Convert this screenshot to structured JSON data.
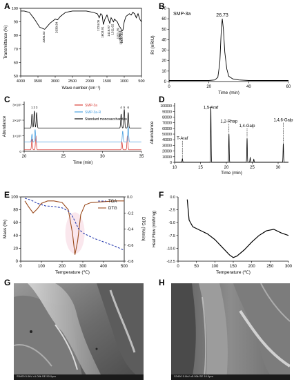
{
  "panels": {
    "A": {
      "letter": "A"
    },
    "B": {
      "letter": "B"
    },
    "C": {
      "letter": "C"
    },
    "D": {
      "letter": "D"
    },
    "E": {
      "letter": "E"
    },
    "F": {
      "letter": "F"
    },
    "G": {
      "letter": "G"
    },
    "H": {
      "letter": "H"
    }
  },
  "chart_data": [
    {
      "id": "A",
      "type": "line",
      "xlabel": "Wave number (cm⁻¹)",
      "ylabel": "Transmittance (%)",
      "xlim": [
        4000,
        500
      ],
      "ylim": [
        50,
        100
      ],
      "xticks": [
        4000,
        3500,
        3000,
        2500,
        2000,
        1500,
        1000,
        500
      ],
      "yticks": [
        50,
        60,
        70,
        80,
        90,
        100
      ],
      "x": [
        4000,
        3900,
        3750,
        3600,
        3450,
        3304.52,
        3150,
        3000,
        2930.84,
        2850,
        2700,
        2500,
        2300,
        2100,
        1900,
        1780,
        1724.05,
        1680,
        1640,
        1603.91,
        1560,
        1500,
        1418.97,
        1380,
        1311.62,
        1280,
        1240,
        1200,
        1151,
        1120,
        1096.4,
        1073.79,
        1037.54,
        1000,
        950,
        900,
        850,
        800,
        750,
        700,
        650,
        600,
        550,
        500
      ],
      "y": [
        98,
        98,
        97,
        92,
        86,
        84.5,
        89,
        92,
        91.5,
        94,
        97,
        98,
        98,
        98,
        97,
        96,
        93,
        96,
        95,
        88,
        92,
        95,
        89,
        93,
        90,
        92,
        91,
        90,
        87,
        86,
        85,
        83,
        84,
        90,
        94,
        95,
        96,
        95,
        97,
        96,
        93,
        96,
        92,
        90
      ],
      "annotations": [
        "3304.52",
        "2930.84",
        "1724.05",
        "1603.91",
        "1418.97",
        "1311.62",
        "1151.39",
        "1096.4",
        "1073.79",
        "1037.54"
      ]
    },
    {
      "id": "B",
      "type": "line",
      "xlabel": "Time (min)",
      "ylabel": "RI (nRIU)",
      "xlim": [
        0,
        60
      ],
      "ylim": [
        0,
        70
      ],
      "xticks": [
        0,
        20,
        40,
        60
      ],
      "yticks": [
        0,
        10,
        20,
        30,
        40,
        50,
        60,
        70
      ],
      "legend": "SMP-3a",
      "peak_label": "26.73",
      "x": [
        0,
        10,
        20,
        23,
        24.5,
        25.5,
        26.2,
        26.73,
        27.3,
        28,
        29,
        30,
        32,
        35,
        40,
        50,
        60
      ],
      "y": [
        1,
        1,
        1,
        1.5,
        4,
        18,
        48,
        60,
        50,
        28,
        12,
        5,
        2.5,
        1.5,
        1,
        1,
        1
      ]
    },
    {
      "id": "C",
      "type": "line",
      "xlabel": "Time (min)",
      "ylabel": "Abundance",
      "xlim": [
        20,
        35
      ],
      "ylim": [
        0,
        320000.0
      ],
      "xticks": [
        20,
        25,
        30,
        35
      ],
      "ytick_labels": [
        "0",
        "1×10⁵",
        "2×10⁵",
        "3×10⁵"
      ],
      "peak_labels": [
        "1",
        "2",
        "3",
        "4",
        "5",
        "6"
      ],
      "series": [
        {
          "name": "SMP-3a",
          "color": "#d9403a",
          "baseline": 10000.0,
          "peaks_x": [
            21.0,
            21.5,
            32.5,
            33.2
          ],
          "peaks_h": [
            70000.0,
            90000.0,
            50000.0,
            90000.0
          ]
        },
        {
          "name": "SMP-3a-R",
          "color": "#4aa0e0",
          "baseline": 60000.0,
          "peaks_x": [
            21.0,
            21.4,
            32.6,
            33.3
          ],
          "peaks_h": [
            50000.0,
            80000.0,
            70000.0,
            100000.0
          ]
        },
        {
          "name": "Standard monosaccharides",
          "color": "#111111",
          "baseline": 150000.0,
          "peaks_x": [
            21.0,
            21.3,
            21.6,
            32.4,
            32.8,
            33.3
          ],
          "peaks_h": [
            90000.0,
            110000.0,
            100000.0,
            90000.0,
            120000.0,
            100000.0
          ]
        }
      ]
    },
    {
      "id": "D",
      "type": "line",
      "xlabel": "Time (min)",
      "ylabel": "Abundance",
      "xlim": [
        10,
        32
      ],
      "ylim": [
        0,
        105000
      ],
      "xticks": [
        10,
        15,
        20,
        25,
        30
      ],
      "yticks": [
        0,
        10000,
        20000,
        30000,
        40000,
        50000,
        60000,
        70000,
        80000,
        90000,
        100000
      ],
      "peaks": [
        {
          "x": 11.5,
          "h": 6000
        },
        {
          "x": 17.0,
          "h": 98000
        },
        {
          "x": 20.5,
          "h": 50000
        },
        {
          "x": 24.0,
          "h": 42000
        },
        {
          "x": 24.6,
          "h": 8000
        },
        {
          "x": 25.3,
          "h": 5000
        },
        {
          "x": 31.0,
          "h": 33000
        }
      ],
      "annotations": [
        {
          "text": "T-Araf",
          "x": 11.5
        },
        {
          "text": "1,5-Araf",
          "x": 17.0
        },
        {
          "text": "1,2-Rhap",
          "x": 20.5
        },
        {
          "text": "1,4-Galp",
          "x": 24.0
        },
        {
          "text": "1,4,6-Galp",
          "x": 31.0
        }
      ]
    },
    {
      "id": "E",
      "type": "line",
      "xlabel": "Temperature (℃)",
      "ylabel": "Mass (%)",
      "y2label": "DTG (%/min)",
      "xlim": [
        0,
        500
      ],
      "ylim": [
        0,
        100
      ],
      "y2lim": [
        -0.8,
        0
      ],
      "xticks": [
        0,
        100,
        200,
        300,
        400,
        500
      ],
      "yticks": [
        0,
        20,
        40,
        60,
        80,
        100
      ],
      "y2ticks": [
        -0.8,
        -0.6,
        -0.4,
        -0.2,
        0
      ],
      "series": [
        {
          "name": "TGA",
          "color": "#2b3fb0",
          "axis": "left",
          "x": [
            20,
            50,
            80,
            120,
            160,
            200,
            230,
            250,
            265,
            280,
            300,
            350,
            400,
            450,
            500
          ],
          "y": [
            98,
            95,
            90,
            86,
            85,
            83,
            78,
            70,
            60,
            50,
            44,
            36,
            30,
            24,
            17
          ]
        },
        {
          "name": "DTG",
          "color": "#9a4a1c",
          "axis": "right",
          "x": [
            20,
            40,
            60,
            80,
            100,
            130,
            160,
            200,
            230,
            250,
            262,
            275,
            290,
            310,
            340,
            400,
            450,
            500
          ],
          "y": [
            -0.05,
            -0.13,
            -0.2,
            -0.15,
            -0.08,
            -0.05,
            -0.05,
            -0.07,
            -0.16,
            -0.45,
            -0.72,
            -0.55,
            -0.22,
            -0.1,
            -0.07,
            -0.06,
            -0.05,
            -0.05
          ]
        }
      ]
    },
    {
      "id": "F",
      "type": "line",
      "xlabel": "Temperature (℃)",
      "ylabel": "Heat Flow (mW/mg)",
      "xlim": [
        0,
        300
      ],
      "ylim": [
        -12.5,
        0
      ],
      "xticks": [
        0,
        50,
        100,
        150,
        200,
        250,
        300
      ],
      "yticks": [
        -12.5,
        -10.0,
        -7.5,
        -5.0,
        -2.5,
        0.0
      ],
      "ytick_labels": [
        "-12.5",
        "-10.0",
        "-7.5",
        "-5.0",
        "-2.5",
        "0.0"
      ],
      "x": [
        25,
        30,
        40,
        60,
        80,
        100,
        120,
        140,
        150,
        160,
        180,
        200,
        220,
        240,
        260,
        280,
        300
      ],
      "y": [
        -0.5,
        -4.5,
        -5.8,
        -6.5,
        -7.2,
        -8.3,
        -9.8,
        -11.3,
        -11.8,
        -11.5,
        -10.3,
        -8.8,
        -7.5,
        -6.6,
        -6.3,
        -7.0,
        -7.5
      ]
    }
  ],
  "sem": {
    "G": {
      "caption": "S3400 5.0kV x1.00k SE  50.0µm"
    },
    "H": {
      "caption": "S3400 5.0kV x5.00k SE  10.0µm"
    }
  }
}
